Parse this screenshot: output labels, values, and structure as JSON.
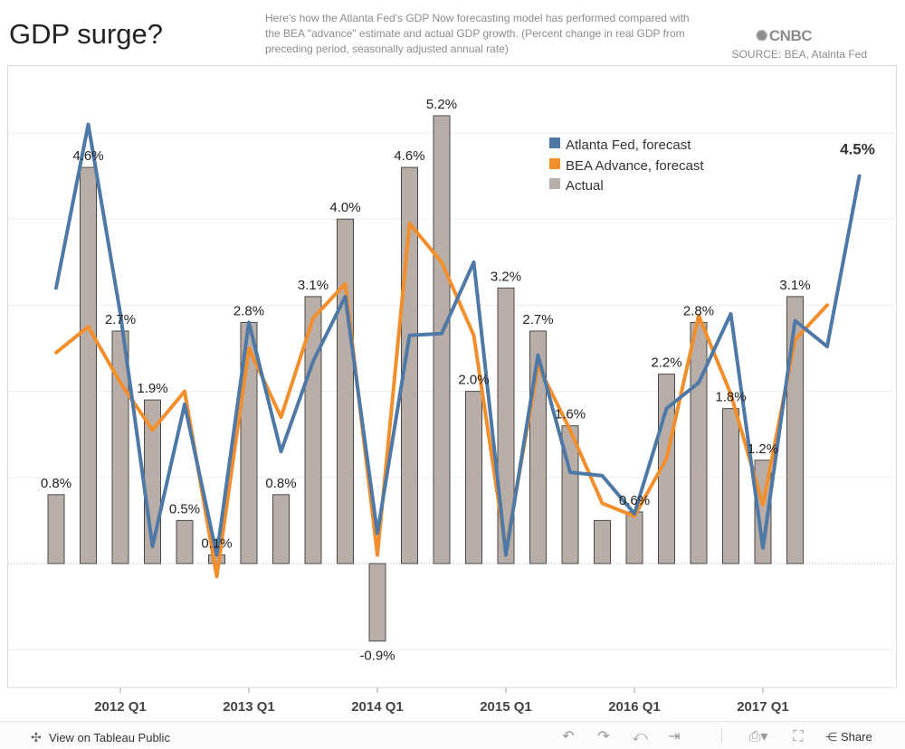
{
  "header": {
    "title": "GDP surge?",
    "subtitle": "Here's how the Atlanta Fed's GDP Now forecasting model has performed compared with the BEA \"advance\" estimate and actual GDP growth. (Percent change in real GDP from preceding period, seasonally adjusted annual rate)",
    "logo_text": "CNBC",
    "source": "SOURCE: BEA, Atalnta Fed"
  },
  "chart_data": {
    "type": "bar",
    "x_tick_labels": [
      "2012 Q1",
      "2013 Q1",
      "2014 Q1",
      "2015 Q1",
      "2016 Q1",
      "2017 Q1"
    ],
    "x_tick_quarter_index": [
      2,
      6,
      10,
      14,
      18,
      22
    ],
    "ylim": [
      -1.4,
      5.6
    ],
    "gridlines": [
      -1,
      0,
      1,
      2,
      3,
      4,
      5
    ],
    "series": [
      {
        "name": "Actual",
        "kind": "bar",
        "color": "#b9aea7",
        "values": [
          0.8,
          4.6,
          2.7,
          1.9,
          0.5,
          0.1,
          2.8,
          0.8,
          3.1,
          4.0,
          -0.9,
          4.6,
          5.2,
          2.0,
          3.2,
          2.7,
          1.6,
          0.5,
          0.6,
          2.2,
          2.8,
          1.8,
          1.2,
          3.1
        ],
        "labels": [
          "0.8%",
          "4.6%",
          "2.7%",
          "1.9%",
          "0.5%",
          "0.1%",
          "2.8%",
          "0.8%",
          "3.1%",
          "4.0%",
          "-0.9%",
          "4.6%",
          "5.2%",
          "2.0%",
          "3.2%",
          "2.7%",
          "1.6%",
          "",
          "0.6%",
          "2.2%",
          "2.8%",
          "1.8%",
          "1.2%",
          "3.1%"
        ]
      },
      {
        "name": "Atlanta Fed, forecast",
        "kind": "line",
        "color": "#4e79a7",
        "values": [
          3.2,
          5.1,
          2.9,
          0.2,
          1.85,
          0.1,
          2.8,
          1.3,
          2.35,
          3.1,
          0.35,
          2.65,
          2.67,
          3.5,
          0.1,
          2.42,
          1.06,
          1.02,
          0.58,
          1.8,
          2.1,
          2.9,
          0.18,
          2.82,
          2.52,
          4.5
        ],
        "end_label": "4.5%"
      },
      {
        "name": "BEA Advance, forecast",
        "kind": "line",
        "color": "#f28e2b",
        "values": [
          2.45,
          2.75,
          2.1,
          1.55,
          2.0,
          -0.15,
          2.5,
          1.7,
          2.85,
          3.25,
          0.1,
          3.95,
          3.5,
          2.65,
          0.15,
          2.3,
          1.55,
          0.7,
          0.55,
          1.22,
          2.88,
          1.97,
          0.68,
          2.6,
          3.0
        ]
      }
    ]
  },
  "legend": {
    "items": [
      {
        "label": "Atlanta Fed, forecast",
        "color": "#4e79a7"
      },
      {
        "label": "BEA Advance, forecast",
        "color": "#f28e2b"
      },
      {
        "label": "Actual",
        "color": "#b9aea7"
      }
    ]
  },
  "footer": {
    "view_label": "View on Tableau Public",
    "share_label": "Share"
  }
}
